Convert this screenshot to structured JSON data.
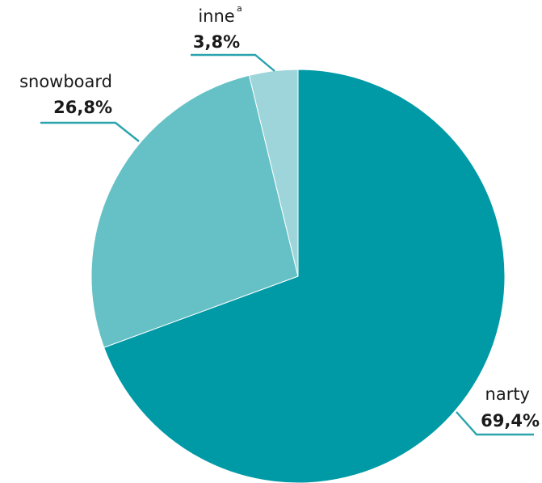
{
  "chart_data": {
    "type": "pie",
    "start_angle_deg": 0,
    "direction": "clockwise",
    "slices": [
      {
        "label": "narty",
        "value": 69.4,
        "value_label": "69,4%",
        "color": "#009aa6",
        "sup": ""
      },
      {
        "label": "snowboard",
        "value": 26.8,
        "value_label": "26,8%",
        "color": "#66c1c6",
        "sup": ""
      },
      {
        "label": "inne",
        "value": 3.8,
        "value_label": "3,8%",
        "color": "#9ed5db",
        "sup": "a"
      }
    ],
    "leader_color": "#2aa3ad"
  }
}
